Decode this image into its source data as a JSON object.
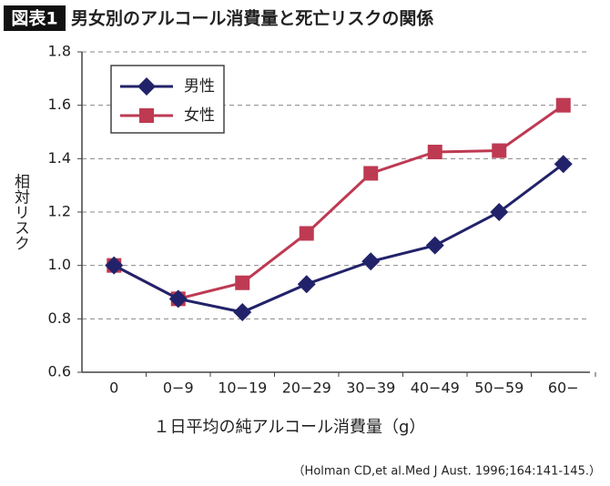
{
  "chart_data": {
    "type": "line",
    "title_label": "図表1",
    "title": "男女別のアルコール消費量と死亡リスクの関係",
    "y_label": "相対リスク",
    "x_label": "１日平均の純アルコール消費量（g）",
    "source": "（Holman CD,et al.Med J Aust. 1996;164:141-145.）",
    "categories": [
      "0",
      "0−9",
      "10−19",
      "20−29",
      "30−39",
      "40−49",
      "50−59",
      "60−"
    ],
    "series": [
      {
        "name": "男性",
        "color": "#22226a",
        "marker": "diamond",
        "values": [
          1.0,
          0.875,
          0.825,
          0.93,
          1.015,
          1.075,
          1.2,
          1.38
        ]
      },
      {
        "name": "女性",
        "color": "#be3a52",
        "marker": "square",
        "values": [
          1.0,
          0.875,
          0.935,
          1.12,
          1.345,
          1.425,
          1.43,
          1.6
        ]
      }
    ],
    "ylim": [
      0.6,
      1.8
    ],
    "yticks": [
      0.6,
      0.8,
      {
        "value": 1,
        "label": "1.0"
      },
      1.2,
      1.4,
      1.6,
      1.8
    ],
    "grid": true,
    "legend": "upper left"
  }
}
